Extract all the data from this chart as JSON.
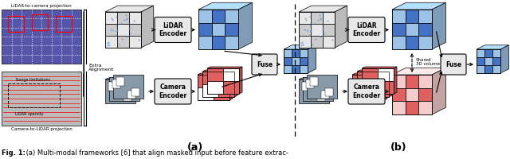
{
  "caption_bold": "Fig. 1:",
  "caption_text": " (a) Multi-modal frameworks [6] that align masked input before feature extrac-",
  "background_color": "#ffffff",
  "text_color": "#000000",
  "label_a": "(a)",
  "label_b": "(b)",
  "fig_width": 6.4,
  "fig_height": 2.0,
  "dpi": 100,
  "blue_light": "#9DC3E6",
  "blue_mid": "#4472C4",
  "blue_dark": "#2F5597",
  "red_light": "#F4CCCC",
  "red_mid": "#E06060",
  "red_dark": "#C00000",
  "gray_light": "#E8E8E8",
  "gray_mid": "#BBBBBB",
  "black": "#000000",
  "white": "#FFFFFF"
}
